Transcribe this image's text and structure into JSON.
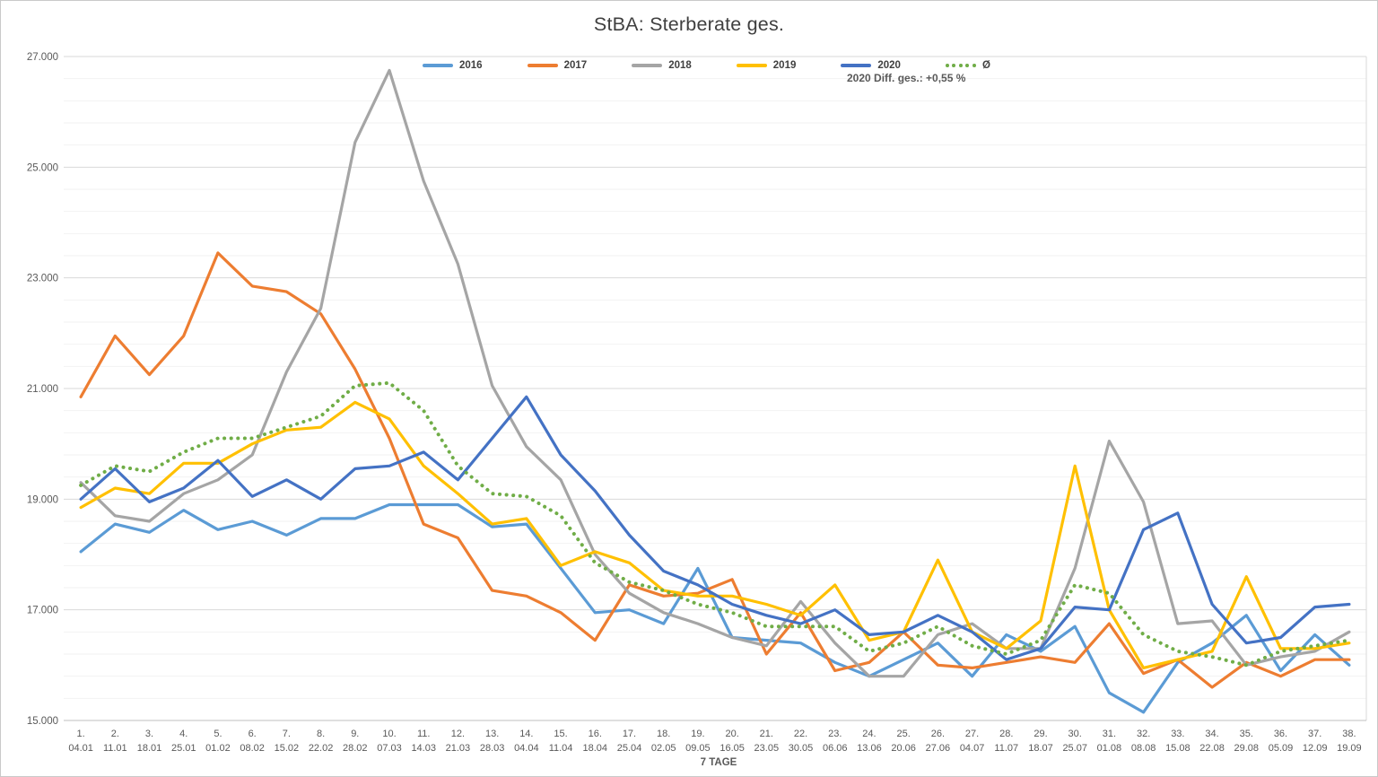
{
  "window": {
    "background": "#ffffff",
    "border_color": "#c9c9c9"
  },
  "chart_data": {
    "type": "line",
    "title": "StBA: Sterberate ges.",
    "annotation": "2020 Diff. ges.: +0,55 %",
    "x_axis_title": "7 TAGE",
    "legend_position": "top",
    "grid": "on",
    "y_axis": {
      "min": 15000,
      "max": 27000,
      "major_unit": 2000,
      "minor_unit": 400,
      "tick_labels": [
        "27.000",
        "25.000",
        "23.000",
        "21.000",
        "19.000",
        "17.000",
        "15.000"
      ]
    },
    "x_axis": {
      "weeks": [
        "1.",
        "2.",
        "3.",
        "4.",
        "5.",
        "6.",
        "7.",
        "8.",
        "9.",
        "10.",
        "11.",
        "12.",
        "13.",
        "14.",
        "15.",
        "16.",
        "17.",
        "18.",
        "19.",
        "20.",
        "21.",
        "22.",
        "23.",
        "24.",
        "25.",
        "26.",
        "27.",
        "28.",
        "29.",
        "30.",
        "31.",
        "32.",
        "33.",
        "34.",
        "35.",
        "36.",
        "37.",
        "38."
      ],
      "dates": [
        "04.01",
        "11.01",
        "18.01",
        "25.01",
        "01.02",
        "08.02",
        "15.02",
        "22.02",
        "28.02",
        "07.03",
        "14.03",
        "21.03",
        "28.03",
        "04.04",
        "11.04",
        "18.04",
        "25.04",
        "02.05",
        "09.05",
        "16.05",
        "23.05",
        "30.05",
        "06.06",
        "13.06",
        "20.06",
        "27.06",
        "04.07",
        "11.07",
        "18.07",
        "25.07",
        "01.08",
        "08.08",
        "15.08",
        "22.08",
        "29.08",
        "05.09",
        "12.09",
        "19.09"
      ]
    },
    "series": [
      {
        "name": "2016",
        "color": "#5B9BD5",
        "style": "solid",
        "values": [
          18050,
          18550,
          18400,
          18800,
          18450,
          18600,
          18350,
          18650,
          18650,
          18900,
          18900,
          18900,
          18500,
          18550,
          17750,
          16950,
          17000,
          16750,
          17750,
          16500,
          16450,
          16400,
          16050,
          15800,
          16100,
          16400,
          15800,
          16550,
          16250,
          16700,
          15500,
          15150,
          16050,
          16400,
          16900,
          15900,
          16550,
          16000
        ]
      },
      {
        "name": "2017",
        "color": "#ED7D31",
        "style": "solid",
        "values": [
          20850,
          21950,
          21250,
          21950,
          23450,
          22850,
          22750,
          22350,
          21350,
          20100,
          18550,
          18300,
          17350,
          17250,
          16950,
          16450,
          17450,
          17250,
          17300,
          17550,
          16200,
          16950,
          15900,
          16050,
          16600,
          16000,
          15950,
          16050,
          16150,
          16050,
          16750,
          15850,
          16100,
          15600,
          16050,
          15800,
          16100,
          16100
        ]
      },
      {
        "name": "2018",
        "color": "#A5A5A5",
        "style": "solid",
        "values": [
          19300,
          18700,
          18600,
          19100,
          19350,
          19800,
          21300,
          22450,
          25450,
          26750,
          24750,
          23250,
          21050,
          19950,
          19350,
          18000,
          17300,
          16950,
          16750,
          16500,
          16350,
          17150,
          16400,
          15800,
          15800,
          16550,
          16750,
          16300,
          16300,
          17750,
          20050,
          18950,
          16750,
          16800,
          16000,
          16150,
          16250,
          16600
        ]
      },
      {
        "name": "2019",
        "color": "#FFC000",
        "style": "solid",
        "values": [
          18850,
          19200,
          19100,
          19650,
          19650,
          20000,
          20250,
          20300,
          20750,
          20450,
          19600,
          19100,
          18550,
          18650,
          17800,
          18050,
          17850,
          17350,
          17250,
          17250,
          17100,
          16900,
          17450,
          16450,
          16600,
          17900,
          16600,
          16300,
          16800,
          19600,
          17000,
          15950,
          16100,
          16250,
          17600,
          16300,
          16300,
          16400
        ]
      },
      {
        "name": "2020",
        "color": "#4472C4",
        "style": "solid",
        "values": [
          19000,
          19550,
          18950,
          19200,
          19700,
          19050,
          19350,
          19000,
          19550,
          19600,
          19850,
          19350,
          20100,
          20850,
          19800,
          19150,
          18350,
          17700,
          17450,
          17100,
          16900,
          16750,
          17000,
          16550,
          16600,
          16900,
          16600,
          16100,
          16300,
          17050,
          17000,
          18450,
          18750,
          17100,
          16400,
          16500,
          17050,
          17100
        ]
      },
      {
        "name": "Ø",
        "color": "#70AD47",
        "style": "dotted",
        "values": [
          19250,
          19600,
          19500,
          19850,
          20100,
          20100,
          20300,
          20500,
          21050,
          21100,
          20600,
          19600,
          19100,
          19050,
          18700,
          17850,
          17500,
          17350,
          17100,
          16950,
          16700,
          16700,
          16700,
          16250,
          16400,
          16700,
          16350,
          16200,
          16450,
          17450,
          17300,
          16550,
          16250,
          16150,
          16000,
          16250,
          16350,
          16450
        ]
      }
    ],
    "text_colors": {
      "axis": "#595959",
      "title": "#3f3f3f",
      "legend": "#404040"
    },
    "grid_colors": {
      "major": "#D9D9D9",
      "minor": "#F2F2F2",
      "axis_line": "#BFBFBF"
    }
  }
}
